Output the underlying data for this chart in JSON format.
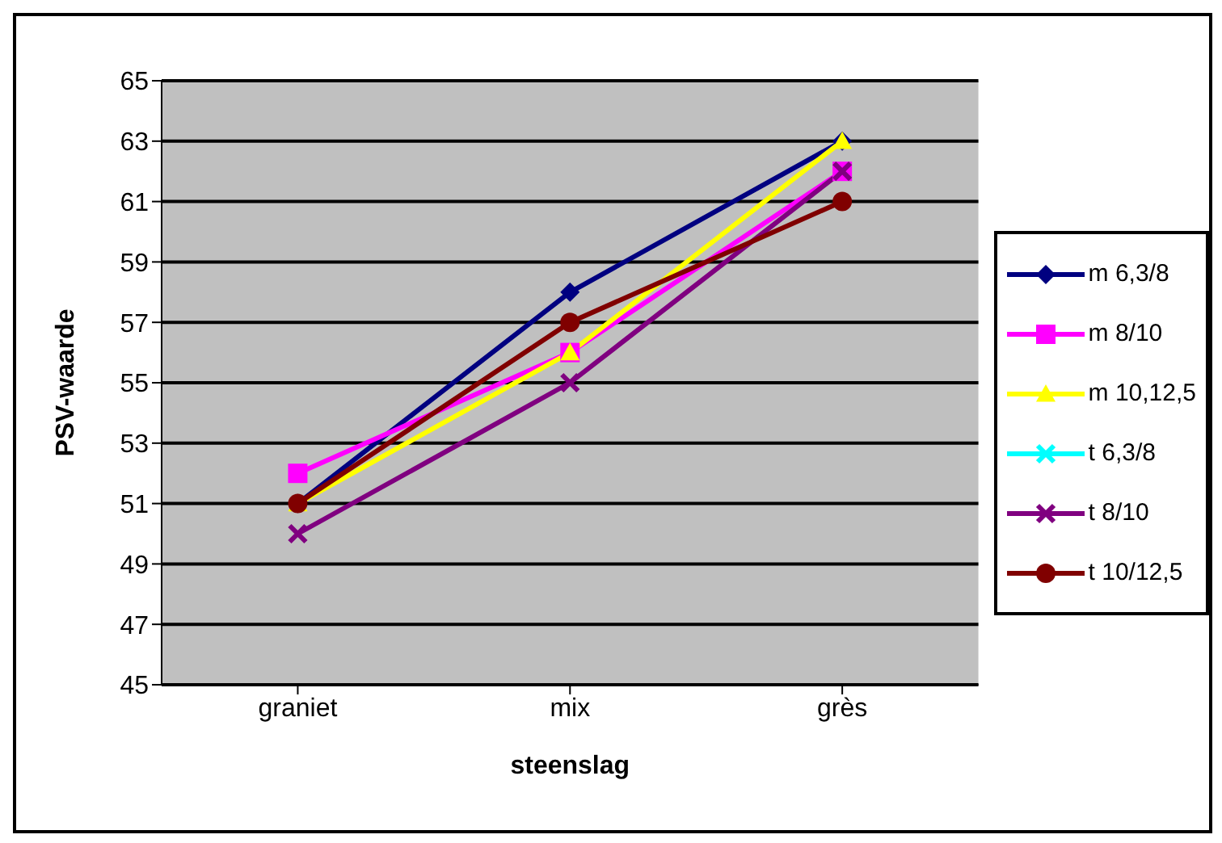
{
  "chart_data": {
    "type": "line",
    "xlabel": "steenslag",
    "ylabel": "PSV-waarde",
    "categories": [
      "graniet",
      "mix",
      "grès"
    ],
    "series": [
      {
        "name": "m 6,3/8",
        "color": "#000080",
        "marker": "diamond",
        "values": [
          51,
          58,
          63
        ]
      },
      {
        "name": "m 8/10",
        "color": "#ff00ff",
        "marker": "square",
        "values": [
          52,
          56,
          62
        ]
      },
      {
        "name": "m 10,12,5",
        "color": "#ffff00",
        "marker": "triangle",
        "values": [
          51,
          56,
          63
        ]
      },
      {
        "name": "t 6,3/8",
        "color": "#00ffff",
        "marker": "cross",
        "values": [
          null,
          null,
          null
        ]
      },
      {
        "name": "t 8/10",
        "color": "#800080",
        "marker": "cross",
        "values": [
          50,
          55,
          62
        ]
      },
      {
        "name": "t 10/12,5",
        "color": "#800000",
        "marker": "circle",
        "values": [
          51,
          57,
          61
        ]
      }
    ],
    "ylim": [
      45,
      65
    ],
    "yticks": [
      45,
      47,
      49,
      51,
      53,
      55,
      57,
      59,
      61,
      63,
      65
    ],
    "grid": "y",
    "legend": "right",
    "line_style": "solid"
  }
}
